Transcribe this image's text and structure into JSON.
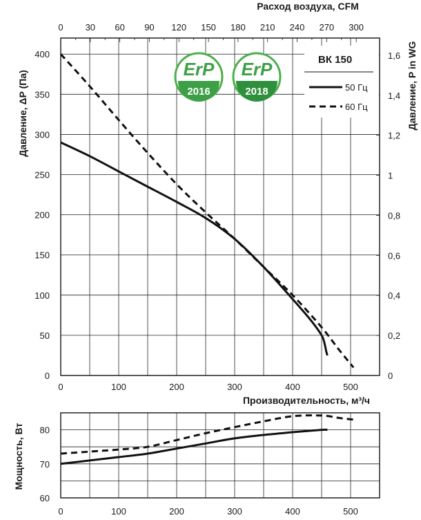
{
  "chart_data": [
    {
      "type": "line",
      "name": "pressure-chart",
      "title": "",
      "top_axis_label": "Расход воздуха, CFM",
      "top_ticks": [
        "0",
        "30",
        "60",
        "90",
        "120",
        "150",
        "180",
        "210",
        "240",
        "270",
        "300"
      ],
      "xlabel": "Производительность, м³/ч",
      "x_ticks": [
        "0",
        "100",
        "200",
        "300",
        "400",
        "500"
      ],
      "xlim": [
        0,
        550
      ],
      "ylabel": "Давление, ΔP (Па)",
      "y_ticks": [
        "0",
        "50",
        "100",
        "150",
        "200",
        "250",
        "300",
        "350",
        "400"
      ],
      "ylim": [
        0,
        420
      ],
      "right_axis_label": "Давление, P in WG",
      "right_ticks": [
        "0",
        "0,2",
        "0,4",
        "0,6",
        "0,8",
        "1",
        "1,2",
        "1,4",
        "1,6"
      ],
      "model_label": "ВК  150",
      "grid": true,
      "series": [
        {
          "name": "50 Гц",
          "style": "solid",
          "points": [
            [
              0,
              290
            ],
            [
              50,
              273
            ],
            [
              100,
              254
            ],
            [
              150,
              235
            ],
            [
              200,
              216
            ],
            [
              250,
              196
            ],
            [
              300,
              170
            ],
            [
              350,
              135
            ],
            [
              400,
              95
            ],
            [
              430,
              70
            ],
            [
              450,
              50
            ],
            [
              455,
              40
            ],
            [
              458,
              30
            ],
            [
              460,
              25
            ]
          ]
        },
        {
          "name": "60 Гц",
          "style": "dashed",
          "points": [
            [
              0,
              400
            ],
            [
              50,
              360
            ],
            [
              100,
              318
            ],
            [
              150,
              277
            ],
            [
              200,
              238
            ],
            [
              250,
              203
            ],
            [
              300,
              170
            ],
            [
              350,
              135
            ],
            [
              400,
              100
            ],
            [
              450,
              60
            ],
            [
              480,
              32
            ],
            [
              505,
              10
            ]
          ]
        }
      ]
    },
    {
      "type": "line",
      "name": "power-chart",
      "title": "",
      "xlabel": "",
      "x_ticks": [
        "0",
        "100",
        "200",
        "300",
        "400",
        "500"
      ],
      "xlim": [
        0,
        550
      ],
      "ylabel": "Мощность, Вт",
      "y_ticks": [
        "60",
        "70",
        "80"
      ],
      "ylim": [
        60,
        85
      ],
      "grid": true,
      "series": [
        {
          "name": "50 Гц",
          "style": "solid",
          "points": [
            [
              0,
              70
            ],
            [
              50,
              71
            ],
            [
              100,
              72
            ],
            [
              150,
              73
            ],
            [
              200,
              74.5
            ],
            [
              250,
              76
            ],
            [
              300,
              77.5
            ],
            [
              350,
              78.5
            ],
            [
              400,
              79.3
            ],
            [
              450,
              80
            ],
            [
              460,
              80
            ]
          ]
        },
        {
          "name": "60 Гц",
          "style": "dashed",
          "points": [
            [
              0,
              73
            ],
            [
              50,
              73.6
            ],
            [
              100,
              74.2
            ],
            [
              150,
              75
            ],
            [
              200,
              77
            ],
            [
              250,
              79
            ],
            [
              300,
              80.8
            ],
            [
              350,
              82.5
            ],
            [
              400,
              84
            ],
            [
              450,
              84.2
            ],
            [
              480,
              83.5
            ],
            [
              505,
              83
            ]
          ]
        }
      ]
    }
  ],
  "badges": [
    {
      "word": "ErP",
      "year": "2016"
    },
    {
      "word": "ErP",
      "year": "2018"
    }
  ],
  "colors": {
    "badge_green": "#4bb04a",
    "badge_dark": "#2e8f3c",
    "line": "#111111"
  }
}
